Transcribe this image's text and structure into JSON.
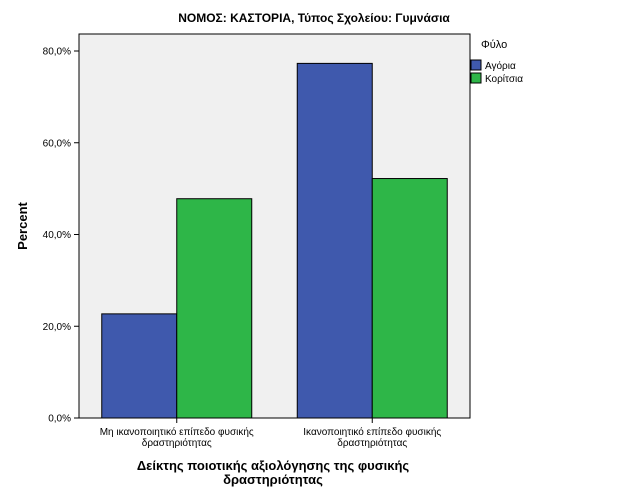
{
  "chart_data": {
    "type": "bar",
    "title": "ΝΟΜΟΣ: ΚΑΣΤΟΡΙΑ, Τύπος Σχολείου: Γυμνάσια",
    "xlabel": "Δείκτης ποιοτικής αξιολόγησης της φυσικής δραστηριότητας",
    "xlabel_lines": [
      "Δείκτης ποιοτικής αξιολόγησης της φυσικής",
      "δραστηριότητας"
    ],
    "ylabel": "Percent",
    "ylim": [
      0,
      80
    ],
    "yticks": [
      {
        "value": 0,
        "label": "0,0%"
      },
      {
        "value": 20,
        "label": "20,0%"
      },
      {
        "value": 40,
        "label": "40,0%"
      },
      {
        "value": 60,
        "label": "60,0%"
      },
      {
        "value": 80,
        "label": "80,0%"
      }
    ],
    "categories": [
      [
        "Μη ικανοποιητικό επίπεδο φυσικής",
        "δραστηριότητας"
      ],
      [
        "Ικανοποιητικό επίπεδο φυσικής",
        "δραστηριότητας"
      ]
    ],
    "legend_title": "Φύλο",
    "legend_position": "right",
    "series": [
      {
        "name": "Αγόρια",
        "color": "#3f59ad",
        "values": [
          22.7,
          77.3
        ]
      },
      {
        "name": "Κορίτσια",
        "color": "#2eb648",
        "values": [
          47.8,
          52.2
        ]
      }
    ],
    "plot_background": "#f0f0f0",
    "grid": false
  }
}
